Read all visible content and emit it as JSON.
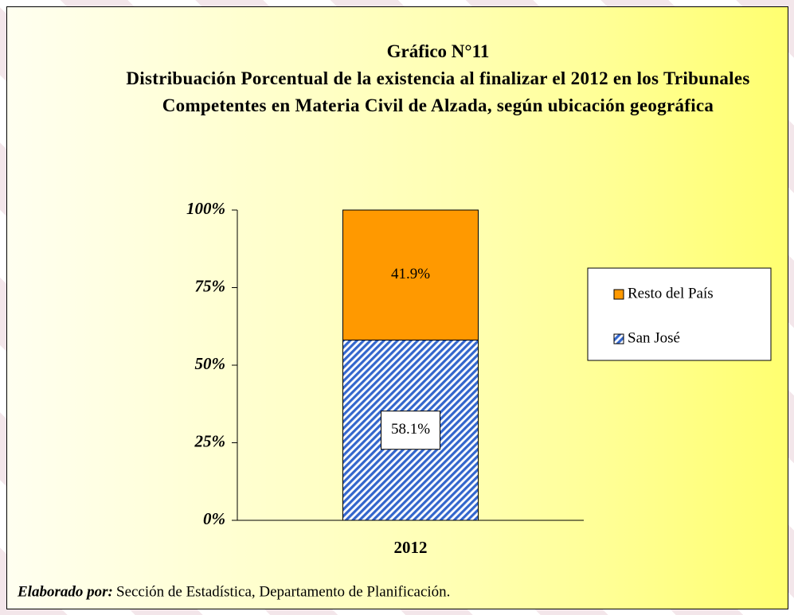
{
  "chart_data": {
    "type": "stacked_bar",
    "title": "Gráfico N°11",
    "subtitle": "Distribuación Porcentual de la existencia al finalizar el 2012 en los Tribunales Competentes en Materia Civil de Alzada, según ubicación geográfica",
    "categories": [
      "2012"
    ],
    "series": [
      {
        "name": "San José",
        "color": "#3366cc",
        "hatch": true,
        "values": [
          58.1
        ],
        "value_labels": [
          "58.1%"
        ]
      },
      {
        "name": "Resto del País",
        "color": "#ff9900",
        "hatch": false,
        "values": [
          41.9
        ],
        "value_labels": [
          "41.9%"
        ]
      }
    ],
    "ylim": [
      0,
      100
    ],
    "yticks": [
      {
        "value": 0,
        "label": "0%"
      },
      {
        "value": 25,
        "label": "25%"
      },
      {
        "value": 50,
        "label": "50%"
      },
      {
        "value": 75,
        "label": "75%"
      },
      {
        "value": 100,
        "label": "100%"
      }
    ],
    "legend": "right",
    "source": {
      "label": "Elaborado por:",
      "text": "Sección de Estadística, Departamento de Planificación."
    }
  }
}
